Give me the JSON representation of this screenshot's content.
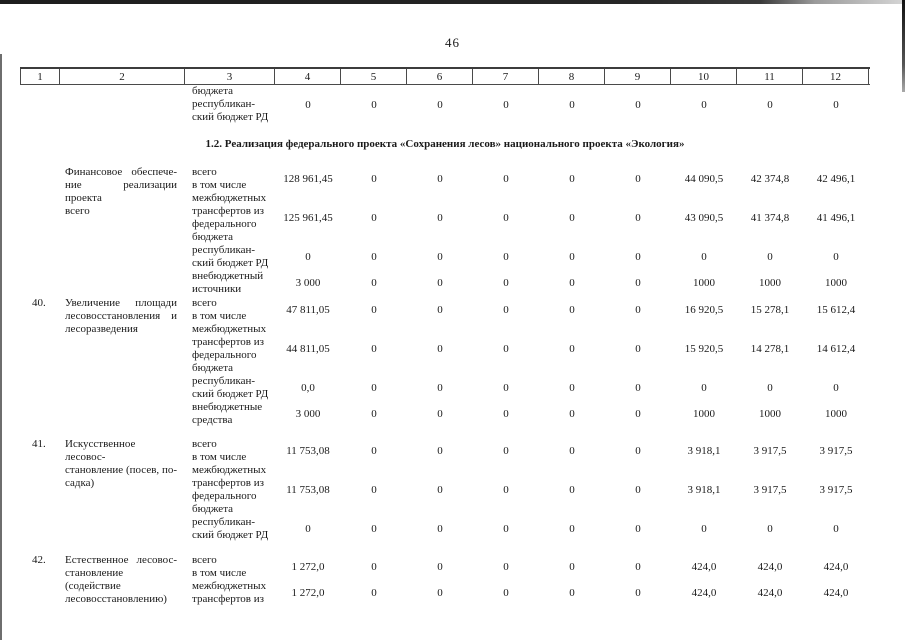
{
  "page": {
    "number": "46"
  },
  "section_heading": "1.2. Реализация федерального проекта «Сохранения лесов» национального проекта «Экология»",
  "table": {
    "header_cols": [
      "1",
      "2",
      "3",
      "4",
      "5",
      "6",
      "7",
      "8",
      "9",
      "10",
      "11",
      "12"
    ],
    "partial_block": {
      "num": "",
      "name_lines": [],
      "subrows": [
        {
          "label_lines": [
            "бюджета",
            "республикан-",
            "ский бюджет РД"
          ],
          "values": [
            "0",
            "0",
            "0",
            "0",
            "0",
            "0",
            "0",
            "0",
            "0"
          ]
        }
      ]
    },
    "blocks": [
      {
        "num": "",
        "name_lines": [
          "Финансовое обеспече-",
          "ние реализации проекта",
          "всего"
        ],
        "subrows": [
          {
            "label_lines": [
              "всего",
              "в том числе"
            ],
            "values": [
              "128 961,45",
              "0",
              "0",
              "0",
              "0",
              "0",
              "44 090,5",
              "42 374,8",
              "42 496,1"
            ]
          },
          {
            "label_lines": [
              "межбюджетных",
              "трансфертов из",
              "федерального",
              "бюджета"
            ],
            "values": [
              "125 961,45",
              "0",
              "0",
              "0",
              "0",
              "0",
              "43 090,5",
              "41 374,8",
              "41 496,1"
            ]
          },
          {
            "label_lines": [
              "республикан-",
              "ский бюджет РД"
            ],
            "values": [
              "0",
              "0",
              "0",
              "0",
              "0",
              "0",
              "0",
              "0",
              "0"
            ]
          },
          {
            "label_lines": [
              "внебюджетный",
              "источники"
            ],
            "values": [
              "3 000",
              "0",
              "0",
              "0",
              "0",
              "0",
              "1000",
              "1000",
              "1000"
            ]
          }
        ]
      },
      {
        "num": "40.",
        "name_lines": [
          "Увеличение площади",
          "лесовосстановления и",
          "лесоразведения"
        ],
        "subrows": [
          {
            "label_lines": [
              "всего",
              "в том числе"
            ],
            "values": [
              "47 811,05",
              "0",
              "0",
              "0",
              "0",
              "0",
              "16 920,5",
              "15 278,1",
              "15 612,4"
            ]
          },
          {
            "label_lines": [
              "межбюджетных",
              "трансфертов из",
              "федерального",
              "бюджета"
            ],
            "values": [
              "44 811,05",
              "0",
              "0",
              "0",
              "0",
              "0",
              "15 920,5",
              "14 278,1",
              "14 612,4"
            ]
          },
          {
            "label_lines": [
              "республикан-",
              "ский бюджет РД"
            ],
            "values": [
              "0,0",
              "0",
              "0",
              "0",
              "0",
              "0",
              "0",
              "0",
              "0"
            ]
          },
          {
            "label_lines": [
              "внебюджетные",
              "средства"
            ],
            "values": [
              "3 000",
              "0",
              "0",
              "0",
              "0",
              "0",
              "1000",
              "1000",
              "1000"
            ]
          }
        ]
      },
      {
        "num": "41.",
        "name_lines": [
          "Искусственное лесовос-",
          "становление (посев, по-",
          "садка)"
        ],
        "subrows": [
          {
            "label_lines": [
              "всего",
              "в том числе"
            ],
            "values": [
              "11 753,08",
              "0",
              "0",
              "0",
              "0",
              "0",
              "3 918,1",
              "3 917,5",
              "3 917,5"
            ]
          },
          {
            "label_lines": [
              "межбюджетных",
              "трансфертов из",
              "федерального",
              "бюджета"
            ],
            "values": [
              "11 753,08",
              "0",
              "0",
              "0",
              "0",
              "0",
              "3 918,1",
              "3 917,5",
              "3 917,5"
            ]
          },
          {
            "label_lines": [
              "республикан-",
              "ский бюджет РД"
            ],
            "values": [
              "0",
              "0",
              "0",
              "0",
              "0",
              "0",
              "0",
              "0",
              "0"
            ]
          }
        ]
      },
      {
        "num": "42.",
        "name_lines": [
          "Естественное лесовос-",
          "становление (содействие",
          "лесовосстановлению)"
        ],
        "subrows": [
          {
            "label_lines": [
              "всего",
              "в том числе"
            ],
            "values": [
              "1 272,0",
              "0",
              "0",
              "0",
              "0",
              "0",
              "424,0",
              "424,0",
              "424,0"
            ]
          },
          {
            "label_lines": [
              "межбюджетных",
              "трансфертов из"
            ],
            "values": [
              "1 272,0",
              "0",
              "0",
              "0",
              "0",
              "0",
              "424,0",
              "424,0",
              "424,0"
            ]
          }
        ]
      }
    ]
  }
}
